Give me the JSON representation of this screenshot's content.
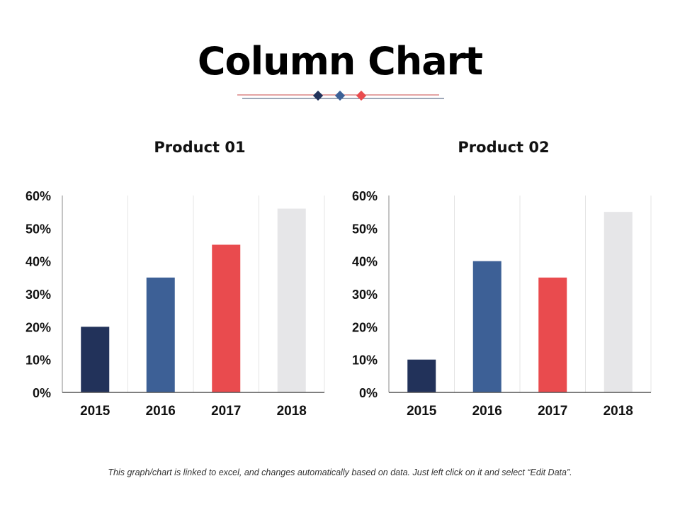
{
  "title": "Column Chart",
  "divider_colors": [
    "#22325a",
    "#3d6096",
    "#e94b4e"
  ],
  "footer": "This graph/chart is linked to excel, and changes automatically based on data. Just left click on it and select “Edit Data”.",
  "chart_data": [
    {
      "type": "bar",
      "title": "Product 01",
      "categories": [
        "2015",
        "2016",
        "2017",
        "2018"
      ],
      "values": [
        20,
        35,
        45,
        56
      ],
      "colors": [
        "#22325a",
        "#3d6096",
        "#e94b4e",
        "#e6e6e8"
      ],
      "ylim": [
        0,
        60
      ],
      "yticks": [
        "0%",
        "10%",
        "20%",
        "30%",
        "40%",
        "50%",
        "60%"
      ],
      "xlabel": "",
      "ylabel": "",
      "grid": "vertical"
    },
    {
      "type": "bar",
      "title": "Product 02",
      "categories": [
        "2015",
        "2016",
        "2017",
        "2018"
      ],
      "values": [
        10,
        40,
        35,
        55
      ],
      "colors": [
        "#22325a",
        "#3d6096",
        "#e94b4e",
        "#e6e6e8"
      ],
      "ylim": [
        0,
        60
      ],
      "yticks": [
        "0%",
        "10%",
        "20%",
        "30%",
        "40%",
        "50%",
        "60%"
      ],
      "xlabel": "",
      "ylabel": "",
      "grid": "vertical"
    }
  ]
}
